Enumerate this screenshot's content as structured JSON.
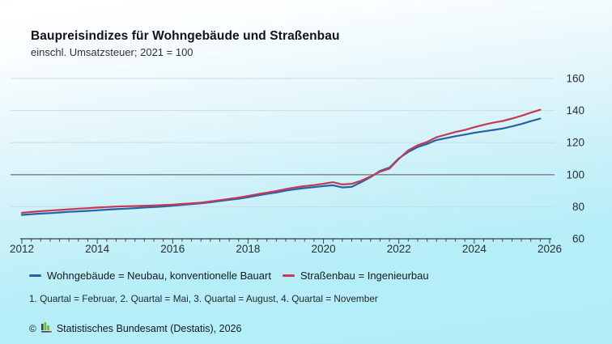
{
  "header": {
    "title": "Baupreisindizes für Wohngebäude und Straßenbau",
    "subtitle": "einschl. Umsatzsteuer; 2021 = 100"
  },
  "chart_data": {
    "type": "line",
    "x_start_year": 2012,
    "x_end_year": 2026,
    "points_per_year": 4,
    "x_tick_label_years": [
      2012,
      2014,
      2016,
      2018,
      2020,
      2022,
      2024,
      2026
    ],
    "ylim": [
      60,
      160
    ],
    "y_ticks": [
      60,
      80,
      100,
      120,
      140,
      160
    ],
    "reference_line": 100,
    "grid": "horizontal",
    "legend_position": "bottom",
    "series": [
      {
        "name": "Wohngebäude = Neubau, konventionelle Bauart",
        "color": "#2761a8",
        "values": [
          74.9,
          75.3,
          75.7,
          76.0,
          76.4,
          76.8,
          77.1,
          77.4,
          77.8,
          78.2,
          78.5,
          78.8,
          79.1,
          79.5,
          79.8,
          80.1,
          80.6,
          81.1,
          81.6,
          82.1,
          82.8,
          83.6,
          84.3,
          85.0,
          85.9,
          87.0,
          88.0,
          88.9,
          90.0,
          90.9,
          91.6,
          92.2,
          92.9,
          93.4,
          92.0,
          92.4,
          95.3,
          98.5,
          102.3,
          104.4,
          110.2,
          114.2,
          117.2,
          119.2,
          121.6,
          122.8,
          124.0,
          125.0,
          126.1,
          127.0,
          127.9,
          128.8,
          130.1,
          131.6,
          133.4,
          135.0
        ]
      },
      {
        "name": "Straßenbau = Ingenieurbau",
        "color": "#c23b55",
        "values": [
          76.2,
          76.7,
          77.2,
          77.6,
          78.0,
          78.4,
          78.8,
          79.1,
          79.5,
          79.8,
          80.1,
          80.3,
          80.4,
          80.6,
          80.8,
          81.0,
          81.3,
          81.7,
          82.1,
          82.6,
          83.3,
          84.1,
          84.9,
          85.7,
          86.7,
          87.8,
          88.8,
          89.8,
          91.0,
          92.0,
          92.9,
          93.5,
          94.4,
          95.3,
          93.9,
          94.3,
          96.2,
          98.9,
          101.8,
          103.8,
          109.8,
          115.2,
          118.4,
          120.4,
          123.4,
          125.0,
          126.6,
          127.9,
          129.6,
          131.1,
          132.4,
          133.5,
          135.0,
          136.7,
          138.7,
          140.5
        ]
      }
    ]
  },
  "footnote": "1. Quartal = Februar, 2. Quartal = Mai, 3. Quartal = August, 4. Quartal = November",
  "copyright": {
    "symbol": "©",
    "text": "Statistisches Bundesamt (Destatis), 2026"
  },
  "colors": {
    "grid": "#c9dde4",
    "reference": "#849093",
    "axis": "#3a3f43",
    "background_top": "#ffffff",
    "background_bottom": "#b2edf8",
    "logo_green": "#76b82a",
    "logo_dark": "#3c4250",
    "logo_red": "#e30613"
  }
}
